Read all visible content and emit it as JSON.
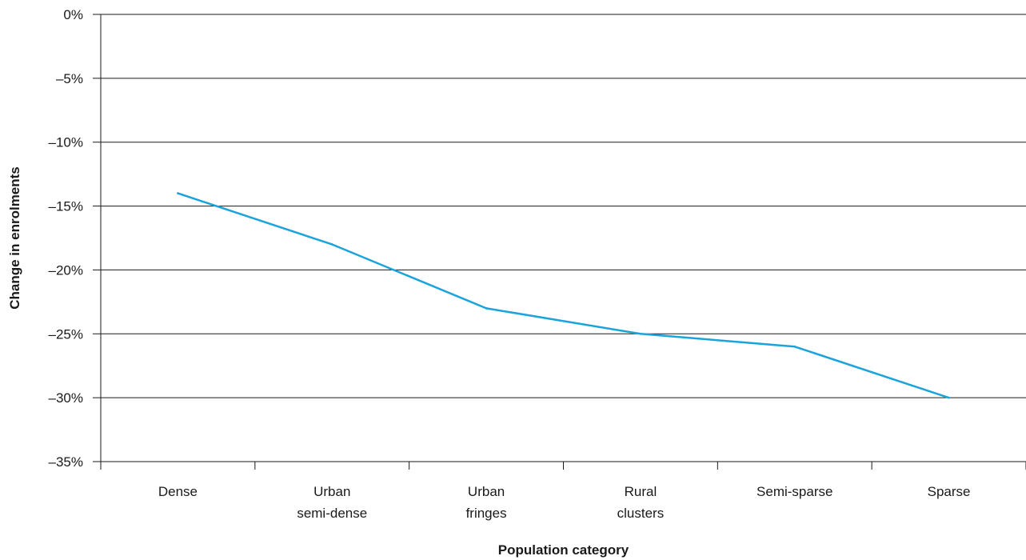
{
  "chart_data": {
    "type": "line",
    "title": "",
    "xlabel": "Population category",
    "ylabel": "Change in enrolments",
    "categories": [
      [
        "Dense"
      ],
      [
        "Urban",
        "semi-dense"
      ],
      [
        "Urban",
        "fringes"
      ],
      [
        "Rural",
        "clusters"
      ],
      [
        "Semi-sparse"
      ],
      [
        "Sparse"
      ]
    ],
    "y_ticks": [
      0,
      -5,
      -10,
      -15,
      -20,
      -25,
      -30,
      -35
    ],
    "y_tick_labels": [
      "0%",
      "–5%",
      "–10%",
      "–15%",
      "–20%",
      "–25%",
      "–30%",
      "–35%"
    ],
    "ylim": [
      -35,
      0
    ],
    "grid": true,
    "series": [
      {
        "values": [
          -14,
          -18,
          -23,
          -25,
          -26,
          -30
        ],
        "color": "#1ba3dc"
      }
    ]
  }
}
